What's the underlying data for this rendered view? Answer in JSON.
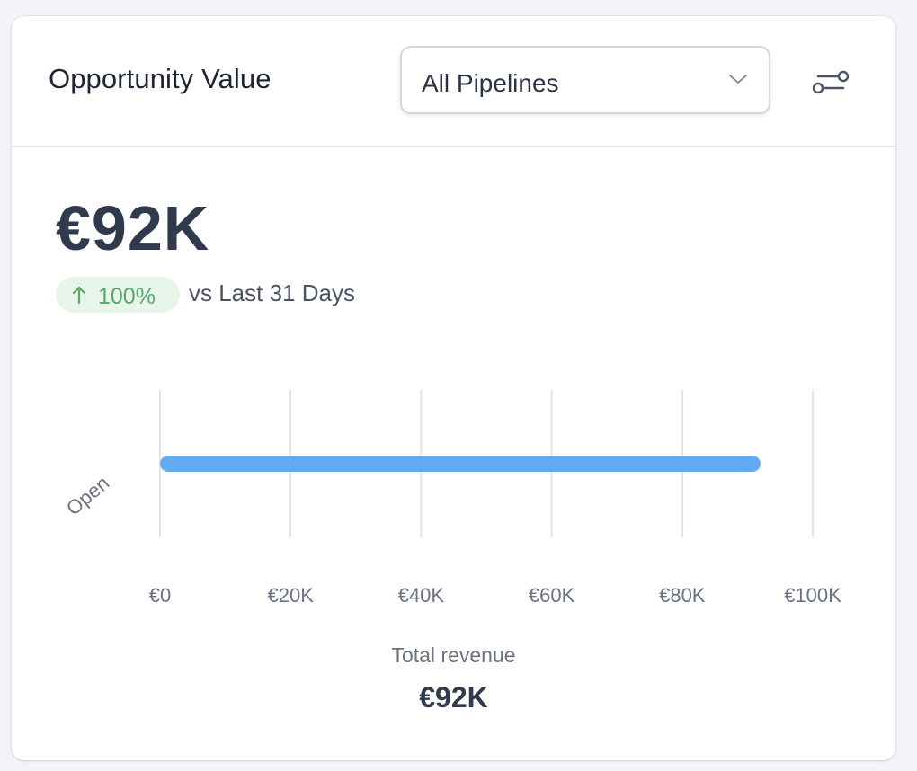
{
  "widget": {
    "title": "Opportunity Value",
    "pipeline_select": {
      "value": "All Pipelines",
      "icon": "chevron-down-icon"
    },
    "filter_icon": "sliders-icon",
    "headline_value": "€92K",
    "delta": {
      "value": "100%",
      "direction": "up",
      "icon": "arrow-up-icon",
      "compare_text": "vs Last 31 Days"
    },
    "total_label": "Total revenue",
    "total_value": "€92K"
  },
  "colors": {
    "bar": "#63aaf2",
    "delta_positive_text": "#5aa86a",
    "delta_positive_bg": "#e7f5ea",
    "gridline": "#e1e3e8",
    "axis_text": "#6b7280"
  },
  "chart_data": {
    "type": "bar",
    "orientation": "horizontal",
    "categories": [
      "Open"
    ],
    "values": [
      92000
    ],
    "xlim": [
      0,
      100000
    ],
    "x_ticks": [
      0,
      20000,
      40000,
      60000,
      80000,
      100000
    ],
    "x_tick_labels": [
      "€0",
      "€20K",
      "€40K",
      "€60K",
      "€80K",
      "€100K"
    ],
    "grid": true,
    "legend": "none"
  }
}
